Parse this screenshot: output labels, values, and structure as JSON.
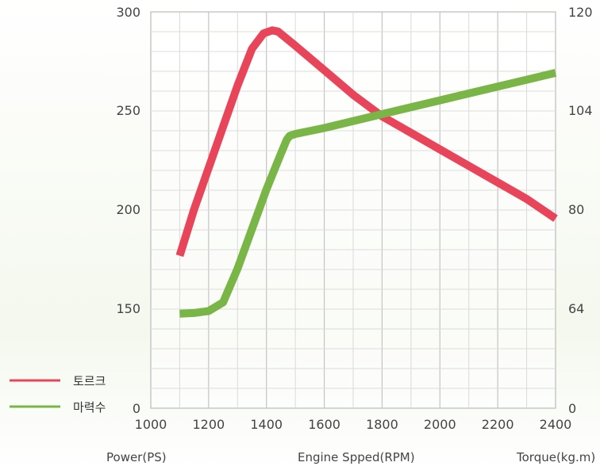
{
  "chart_data": {
    "type": "line",
    "x": [
      1100,
      1120,
      1150,
      1200,
      1250,
      1300,
      1350,
      1390,
      1420,
      1440,
      1460,
      1500,
      1520,
      1600,
      1700,
      1800,
      1900,
      2000,
      2100,
      2200,
      2300,
      2400
    ],
    "x_ticks": [
      "1000",
      "1200",
      "1400",
      "1600",
      "1800",
      "2000",
      "2200",
      "2400"
    ],
    "xlim": [
      1000,
      2400
    ],
    "xlabel": "Engine Spped(RPM)",
    "y_left_ticks": [
      "0",
      "150",
      "200",
      "250",
      "300"
    ],
    "ylabel_left": "Power(PS)",
    "y_right_ticks": [
      "0",
      "64",
      "80",
      "104",
      "120"
    ],
    "ylabel_right": "Torque(kg.m)",
    "grid": true,
    "legend_position": "left",
    "series": [
      {
        "name": "토르크",
        "axis": "right",
        "color": "#e8455a",
        "points": [
          [
            1100,
            72.5
          ],
          [
            1150,
            80
          ],
          [
            1200,
            90
          ],
          [
            1250,
            100
          ],
          [
            1300,
            108
          ],
          [
            1350,
            114
          ],
          [
            1390,
            116.5
          ],
          [
            1420,
            117
          ],
          [
            1440,
            116.8
          ],
          [
            1500,
            114.5
          ],
          [
            1600,
            110.5
          ],
          [
            1700,
            106.5
          ],
          [
            1800,
            102.5
          ],
          [
            1900,
            98.5
          ],
          [
            2000,
            94.5
          ],
          [
            2100,
            90.5
          ],
          [
            2200,
            86.5
          ],
          [
            2300,
            82.5
          ],
          [
            2400,
            78.5
          ]
        ]
      },
      {
        "name": "마력수",
        "axis": "left",
        "color": "#7ab547",
        "points": [
          [
            1100,
            142
          ],
          [
            1150,
            143
          ],
          [
            1200,
            146
          ],
          [
            1250,
            153
          ],
          [
            1300,
            170
          ],
          [
            1350,
            190
          ],
          [
            1400,
            210
          ],
          [
            1450,
            228
          ],
          [
            1470,
            235
          ],
          [
            1480,
            237
          ],
          [
            1500,
            238
          ],
          [
            1600,
            241
          ],
          [
            1700,
            244.5
          ],
          [
            1800,
            248
          ],
          [
            1900,
            251.5
          ],
          [
            2000,
            255
          ],
          [
            2100,
            258.5
          ],
          [
            2200,
            262
          ],
          [
            2300,
            265.5
          ],
          [
            2400,
            269
          ]
        ]
      }
    ]
  }
}
